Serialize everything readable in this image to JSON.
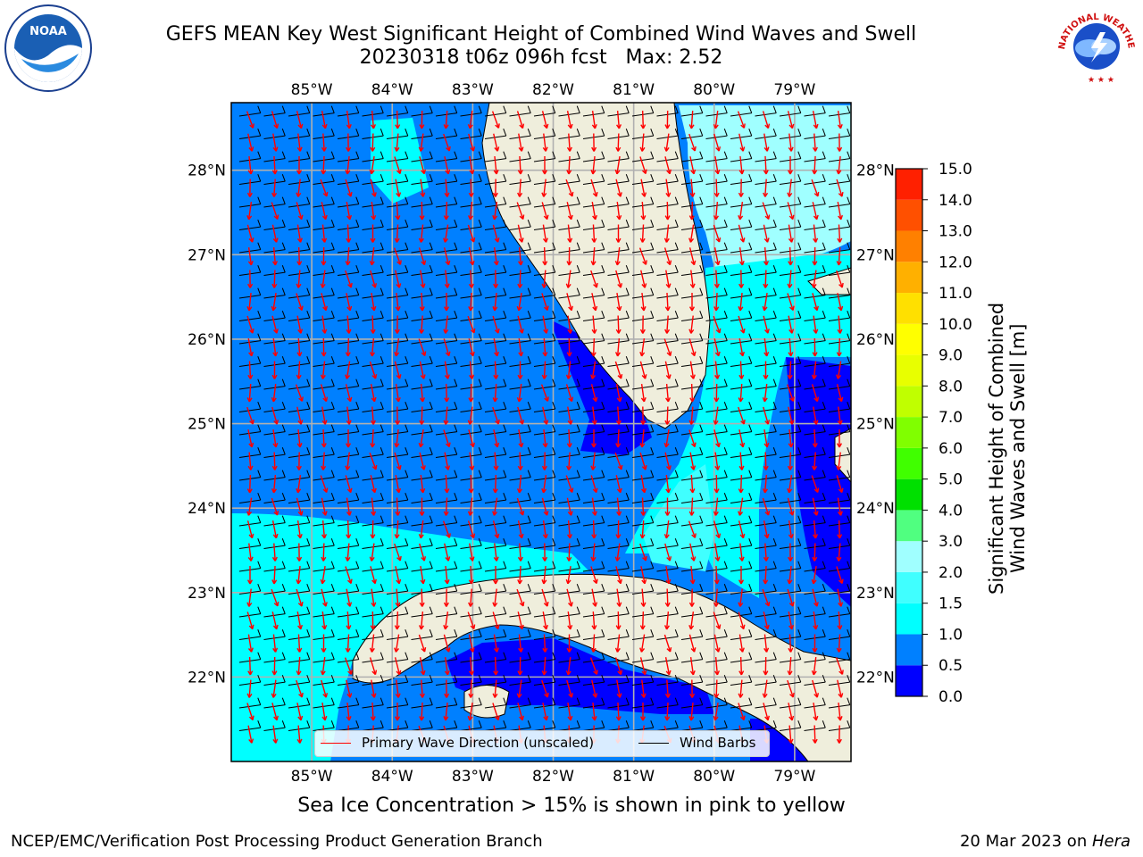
{
  "title": {
    "line1": "GEFS MEAN Key West Significant Height of Combined Wind Waves and Swell",
    "line2": "20230318 t06z 096h fcst   Max: 2.52"
  },
  "map": {
    "lon_labels": [
      "85°W",
      "84°W",
      "83°W",
      "82°W",
      "81°W",
      "80°W",
      "79°W"
    ],
    "lon_values": [
      -85,
      -84,
      -83,
      -82,
      -81,
      -80,
      -79
    ],
    "lat_labels": [
      "28°N",
      "27°N",
      "26°N",
      "25°N",
      "24°N",
      "23°N",
      "22°N"
    ],
    "lat_values": [
      28,
      27,
      26,
      25,
      24,
      23,
      22
    ],
    "extent": {
      "lon_min": -86.0,
      "lon_max": -78.3,
      "lat_min": 21.0,
      "lat_max": 28.8
    },
    "colors": {
      "ocean_mid": "#0080ff",
      "ocean_low": "#0000ff",
      "ocean_cyan": "#00ffff",
      "ocean_lightcyan": "#80ffff",
      "land": "#efeedc",
      "grid": "#b0b0b0",
      "wave_arrow": "#ff0000",
      "wind_barb": "#000000"
    }
  },
  "colorbar": {
    "label_line1": "Significant Height of Combined",
    "label_line2": "Wind Waves and Swell [m]",
    "ticks": [
      "15.0",
      "14.0",
      "13.0",
      "12.0",
      "11.0",
      "10.0",
      "9.0",
      "8.0",
      "7.0",
      "6.0",
      "5.0",
      "4.0",
      "3.0",
      "2.0",
      "1.5",
      "1.0",
      "0.5",
      "0.0"
    ],
    "colors": [
      "#0000ff",
      "#0080ff",
      "#00ffff",
      "#40ffff",
      "#a0ffff",
      "#50ff80",
      "#00e000",
      "#40ff00",
      "#80ff00",
      "#c0ff00",
      "#e8ff00",
      "#ffff00",
      "#ffe000",
      "#ffb000",
      "#ff8000",
      "#ff5000",
      "#ff2000"
    ]
  },
  "legend": {
    "wave_label": "Primary Wave Direction (unscaled)",
    "wind_label": "Wind Barbs"
  },
  "ice_note": "Sea Ice Concentration > 15% is shown in pink to yellow",
  "footer": {
    "left": "NCEP/EMC/Verification Post Processing Product Generation Branch",
    "right_date": "20 Mar 2023 on ",
    "right_host": "Hera"
  },
  "logos": {
    "noaa_text": "NOAA",
    "nws_text": "NATIONAL WEATHER SERVICE"
  }
}
